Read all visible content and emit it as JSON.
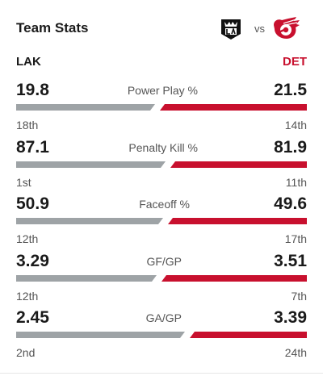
{
  "header": {
    "title": "Team Stats",
    "vs_label": "vs",
    "left_team": {
      "abbr": "LAK",
      "logo_icon": "la-kings-logo-icon"
    },
    "right_team": {
      "abbr": "DET",
      "logo_icon": "detroit-red-wings-logo-icon"
    }
  },
  "colors": {
    "left_bar": "#9ea3a6",
    "right_bar": "#c8102e",
    "right_accent": "#c8102e"
  },
  "stats": [
    {
      "label": "Power Play %",
      "left_value": "19.8",
      "right_value": "21.5",
      "left_rank": "18th",
      "right_rank": "14th",
      "left_share": 0.479
    },
    {
      "label": "Penalty Kill %",
      "left_value": "87.1",
      "right_value": "81.9",
      "left_rank": "1st",
      "right_rank": "11th",
      "left_share": 0.515
    },
    {
      "label": "Faceoff %",
      "left_value": "50.9",
      "right_value": "49.6",
      "left_rank": "12th",
      "right_rank": "17th",
      "left_share": 0.506
    },
    {
      "label": "GF/GP",
      "left_value": "3.29",
      "right_value": "3.51",
      "left_rank": "12th",
      "right_rank": "7th",
      "left_share": 0.484
    },
    {
      "label": "GA/GP",
      "left_value": "2.45",
      "right_value": "3.39",
      "left_rank": "2nd",
      "right_rank": "24th",
      "left_share": 0.58
    }
  ]
}
